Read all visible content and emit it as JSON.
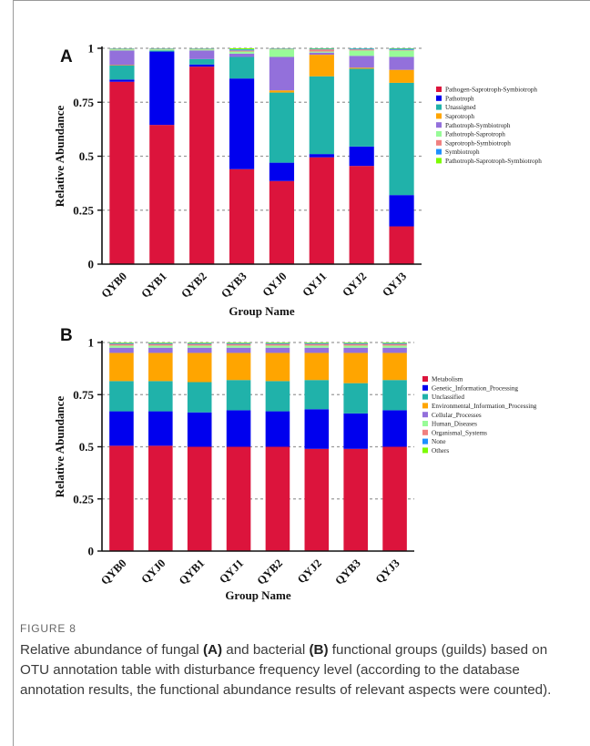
{
  "figure": {
    "label": "FIGURE 8",
    "caption_parts": [
      "Relative abundance of fungal ",
      "(A)",
      " and bacterial ",
      "(B)",
      " functional groups (guilds) based on OTU annotation table with disturbance frequency level (according to the database annotation results, the functional abundance results of relevant aspects were counted)."
    ]
  },
  "chart_data": [
    {
      "panel": "A",
      "type": "bar",
      "stacked": true,
      "xlabel": "Group Name",
      "ylabel": "Relative Abundance",
      "ylim": [
        0,
        1
      ],
      "yticks": [
        0,
        0.25,
        0.5,
        0.75,
        1
      ],
      "ytick_labels": [
        "0",
        "0.25",
        "0.5",
        "0.75",
        "1"
      ],
      "grid": "dashed horizontal",
      "legend_position": "right",
      "categories": [
        "QYB0",
        "QYB1",
        "QYB2",
        "QYB3",
        "QYJ0",
        "QYJ1",
        "QYJ2",
        "QYJ3"
      ],
      "series": [
        {
          "name": "Pathogen-Saprotroph-Symbiotroph",
          "color": "#DC143C",
          "values": [
            0.845,
            0.645,
            0.915,
            0.44,
            0.385,
            0.495,
            0.455,
            0.175
          ]
        },
        {
          "name": "Pathotroph",
          "color": "#0000EE",
          "values": [
            0.01,
            0.34,
            0.01,
            0.42,
            0.085,
            0.015,
            0.09,
            0.145
          ]
        },
        {
          "name": "Unassigned",
          "color": "#20B2AA",
          "values": [
            0.065,
            0.005,
            0.025,
            0.1,
            0.325,
            0.36,
            0.36,
            0.52
          ]
        },
        {
          "name": "Saprotroph",
          "color": "#FFA500",
          "values": [
            0.002,
            0.0,
            0.0,
            0.0,
            0.01,
            0.1,
            0.005,
            0.06
          ]
        },
        {
          "name": "Pathotroph-Symbiotroph",
          "color": "#9370DB",
          "values": [
            0.068,
            0.0,
            0.04,
            0.015,
            0.155,
            0.01,
            0.055,
            0.06
          ]
        },
        {
          "name": "Pathotroph-Saprotroph",
          "color": "#98FB98",
          "values": [
            0.005,
            0.005,
            0.005,
            0.01,
            0.035,
            0.005,
            0.025,
            0.03
          ]
        },
        {
          "name": "Saprotroph-Symbiotroph",
          "color": "#F08080",
          "values": [
            0.002,
            0.002,
            0.002,
            0.005,
            0.002,
            0.01,
            0.005,
            0.003
          ]
        },
        {
          "name": "Symbiotroph",
          "color": "#1E90FF",
          "values": [
            0.002,
            0.002,
            0.002,
            0.005,
            0.002,
            0.003,
            0.004,
            0.005
          ]
        },
        {
          "name": "Pathotroph-Saprotroph-Symbiotroph",
          "color": "#7CFC00",
          "values": [
            0.001,
            0.001,
            0.001,
            0.005,
            0.001,
            0.002,
            0.001,
            0.002
          ]
        }
      ]
    },
    {
      "panel": "B",
      "type": "bar",
      "stacked": true,
      "xlabel": "Group Name",
      "ylabel": "Relative Abundance",
      "ylim": [
        0,
        1
      ],
      "yticks": [
        0,
        0.25,
        0.5,
        0.75,
        1
      ],
      "ytick_labels": [
        "0",
        "0.25",
        "0.5",
        "0.75",
        "1"
      ],
      "grid": "dashed horizontal",
      "legend_position": "right",
      "categories": [
        "QYB0",
        "QYJ0",
        "QYB1",
        "QYJ1",
        "QYB2",
        "QYJ2",
        "QYB3",
        "QYJ3"
      ],
      "series": [
        {
          "name": "Metabolism",
          "color": "#DC143C",
          "values": [
            0.505,
            0.505,
            0.5,
            0.5,
            0.5,
            0.49,
            0.49,
            0.5
          ]
        },
        {
          "name": "Genetic_Information_Processing",
          "color": "#0000EE",
          "values": [
            0.165,
            0.165,
            0.165,
            0.175,
            0.17,
            0.19,
            0.17,
            0.175
          ]
        },
        {
          "name": "Unclassified",
          "color": "#20B2AA",
          "values": [
            0.145,
            0.145,
            0.145,
            0.145,
            0.145,
            0.14,
            0.145,
            0.145
          ]
        },
        {
          "name": "Environmental_Information_Processing",
          "color": "#FFA500",
          "values": [
            0.135,
            0.135,
            0.14,
            0.13,
            0.135,
            0.13,
            0.145,
            0.13
          ]
        },
        {
          "name": "Cellular_Processes",
          "color": "#9370DB",
          "values": [
            0.025,
            0.025,
            0.025,
            0.025,
            0.025,
            0.025,
            0.025,
            0.025
          ]
        },
        {
          "name": "Human_Diseases",
          "color": "#98FB98",
          "values": [
            0.01,
            0.01,
            0.01,
            0.01,
            0.01,
            0.01,
            0.01,
            0.01
          ]
        },
        {
          "name": "Organismal_Systems",
          "color": "#F08080",
          "values": [
            0.008,
            0.008,
            0.008,
            0.008,
            0.008,
            0.008,
            0.008,
            0.008
          ]
        },
        {
          "name": "None",
          "color": "#1E90FF",
          "values": [
            0.004,
            0.004,
            0.004,
            0.004,
            0.004,
            0.004,
            0.004,
            0.004
          ]
        },
        {
          "name": "Others",
          "color": "#7CFC00",
          "values": [
            0.003,
            0.003,
            0.003,
            0.003,
            0.003,
            0.003,
            0.003,
            0.003
          ]
        }
      ]
    }
  ]
}
